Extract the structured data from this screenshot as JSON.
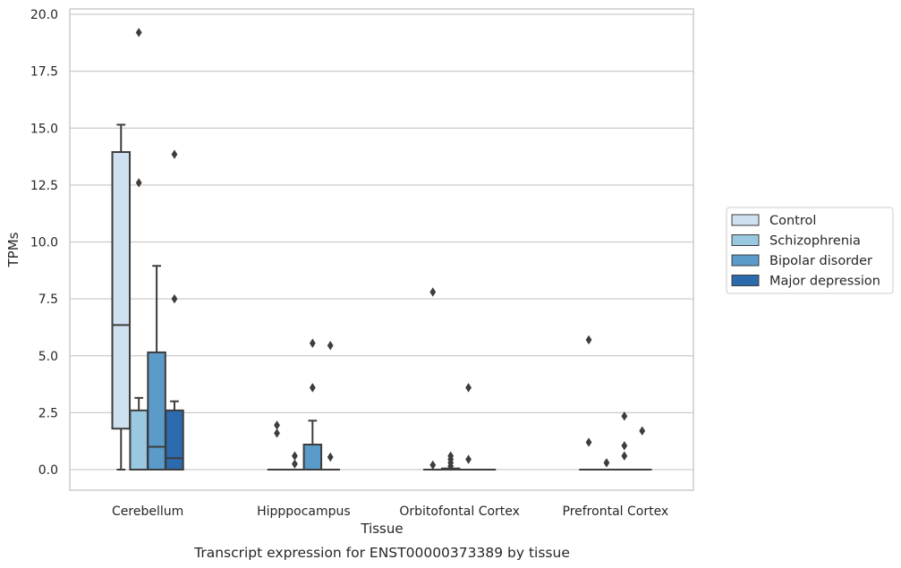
{
  "chart_data": {
    "type": "box",
    "title": "",
    "caption": "Transcript expression for ENST00000373389 by tissue",
    "xlabel": "Tissue",
    "ylabel": "TPMs",
    "ylim": [
      -0.9,
      20.2
    ],
    "yticks": [
      "0.0",
      "2.5",
      "5.0",
      "7.5",
      "10.0",
      "12.5",
      "15.0",
      "17.5",
      "20.0"
    ],
    "ytick_values": [
      0,
      2.5,
      5,
      7.5,
      10,
      12.5,
      15,
      17.5,
      20
    ],
    "grid": true,
    "legend_position": "right",
    "categories": [
      "Cerebellum",
      "Hipppocampus",
      "Orbitofontal Cortex",
      "Prefrontal Cortex"
    ],
    "series": [
      {
        "name": "Control",
        "color": "#cfe0f1",
        "boxes": [
          {
            "whislo": 0,
            "q1": 1.8,
            "med": 6.35,
            "q3": 13.95,
            "whishi": 15.15,
            "fliers": []
          },
          {
            "whislo": 0,
            "q1": 0,
            "med": 0,
            "q3": 0,
            "whishi": 0,
            "fliers": [
              1.95,
              1.6
            ]
          },
          {
            "whislo": 0,
            "q1": 0,
            "med": 0,
            "q3": 0,
            "whishi": 0,
            "fliers": [
              7.8,
              0.2
            ]
          },
          {
            "whislo": 0,
            "q1": 0,
            "med": 0,
            "q3": 0,
            "whishi": 0,
            "fliers": [
              5.7,
              1.2
            ]
          }
        ]
      },
      {
        "name": "Schizophrenia",
        "color": "#9ac8e0",
        "boxes": [
          {
            "whislo": 0,
            "q1": 0,
            "med": 0,
            "q3": 2.6,
            "whishi": 3.15,
            "fliers": [
              19.2,
              12.6
            ]
          },
          {
            "whislo": 0,
            "q1": 0,
            "med": 0,
            "q3": 0,
            "whishi": 0,
            "fliers": [
              0.6,
              0.25
            ]
          },
          {
            "whislo": 0,
            "q1": 0,
            "med": 0,
            "q3": 0.05,
            "whishi": 0.05,
            "fliers": [
              0.6,
              0.45,
              0.3,
              0.15
            ]
          },
          {
            "whislo": 0,
            "q1": 0,
            "med": 0,
            "q3": 0,
            "whishi": 0,
            "fliers": [
              0.3
            ]
          }
        ]
      },
      {
        "name": "Bipolar disorder",
        "color": "#5a9bc9",
        "boxes": [
          {
            "whislo": 0,
            "q1": 0,
            "med": 1.0,
            "q3": 5.15,
            "whishi": 8.95,
            "fliers": []
          },
          {
            "whislo": 0,
            "q1": 0,
            "med": 0,
            "q3": 1.1,
            "whishi": 2.15,
            "fliers": [
              5.55,
              3.6
            ]
          },
          {
            "whislo": 0,
            "q1": 0,
            "med": 0,
            "q3": 0,
            "whishi": 0,
            "fliers": [
              3.6,
              0.45
            ]
          },
          {
            "whislo": 0,
            "q1": 0,
            "med": 0,
            "q3": 0,
            "whishi": 0,
            "fliers": [
              2.35,
              1.05,
              0.6
            ]
          }
        ]
      },
      {
        "name": "Major depression",
        "color": "#2b6aad",
        "boxes": [
          {
            "whislo": 0,
            "q1": 0,
            "med": 0.5,
            "q3": 2.6,
            "whishi": 3.0,
            "fliers": [
              13.85,
              7.5
            ]
          },
          {
            "whislo": 0,
            "q1": 0,
            "med": 0,
            "q3": 0,
            "whishi": 0,
            "fliers": [
              5.45,
              0.55
            ]
          },
          {
            "whislo": 0,
            "q1": 0,
            "med": 0,
            "q3": 0,
            "whishi": 0,
            "fliers": []
          },
          {
            "whislo": 0,
            "q1": 0,
            "med": 0,
            "q3": 0,
            "whishi": 0,
            "fliers": [
              1.7
            ]
          }
        ]
      }
    ]
  }
}
